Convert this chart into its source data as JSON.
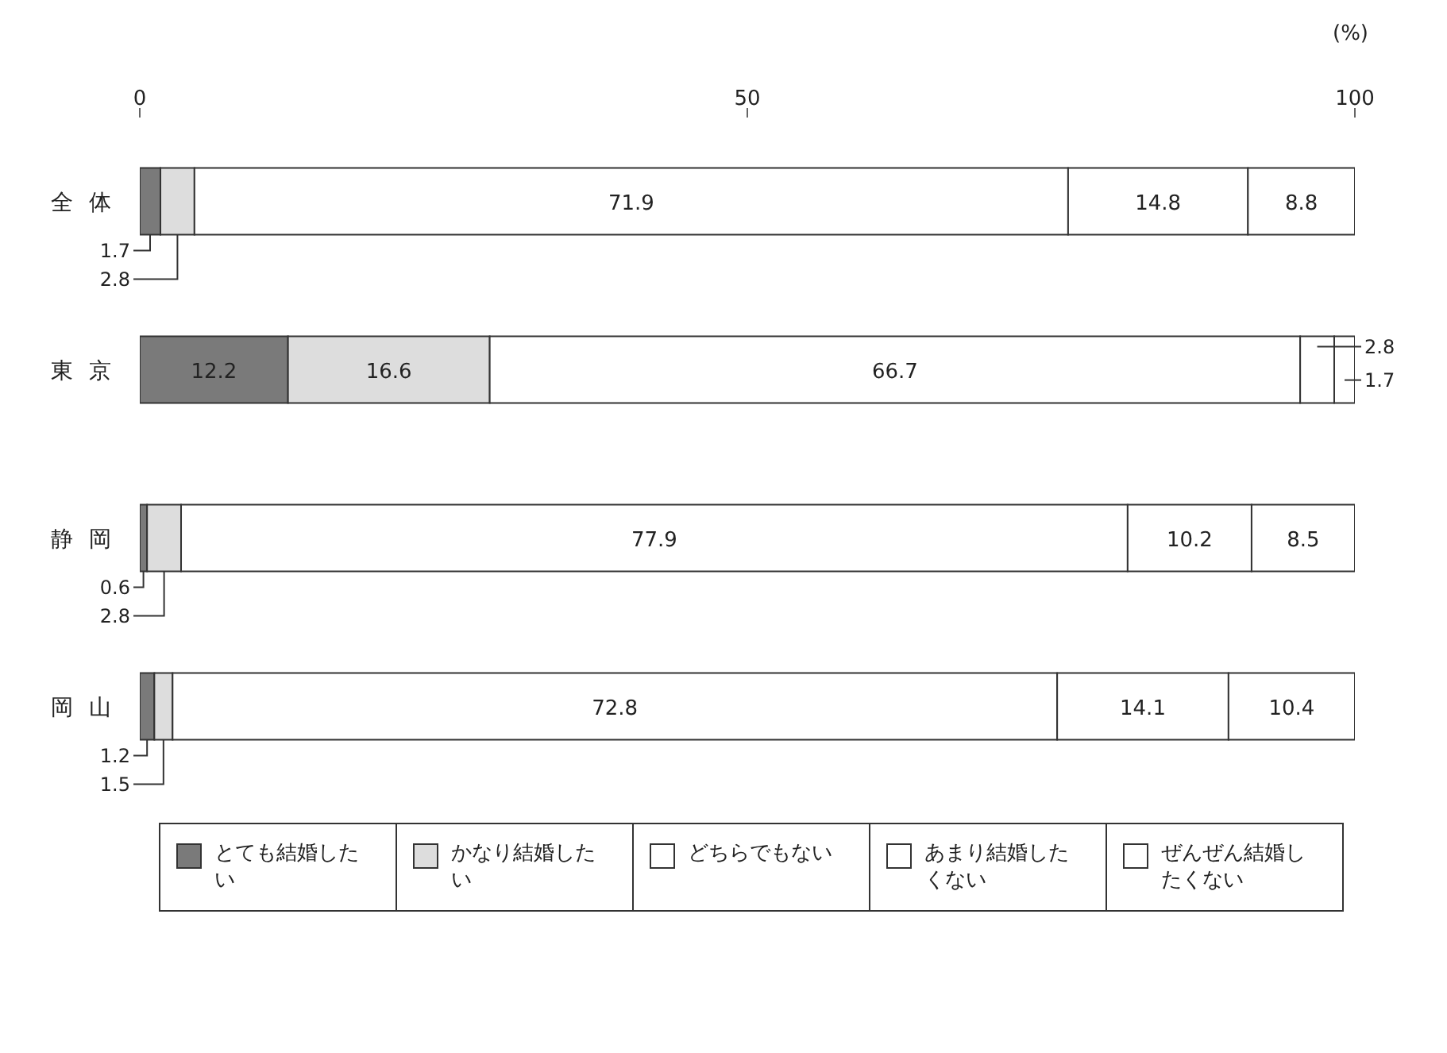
{
  "chart_data": {
    "type": "bar",
    "orientation": "horizontal",
    "stacked": true,
    "xlabel": "(%)",
    "categories": [
      "全体",
      "東京",
      "静岡",
      "岡山"
    ],
    "series": [
      {
        "name": "とても結婚したい",
        "color": "#7a7a7a",
        "values": [
          1.7,
          12.2,
          0.6,
          1.2
        ]
      },
      {
        "name": "かなり結婚したい",
        "color": "#dddddd",
        "values": [
          2.8,
          16.6,
          2.8,
          1.5
        ]
      },
      {
        "name": "どちらでもない",
        "color": "#ffffff",
        "values": [
          71.9,
          66.7,
          77.9,
          72.8
        ]
      },
      {
        "name": "あまり結婚したくない",
        "color": "#ffffff",
        "values": [
          14.8,
          2.8,
          10.2,
          14.1
        ]
      },
      {
        "name": "ぜんぜん結婚したくない",
        "color": "#ffffff",
        "values": [
          8.8,
          1.7,
          8.5,
          10.4
        ]
      }
    ],
    "xlim": [
      0,
      100
    ],
    "xticks": [
      0,
      50,
      100
    ],
    "data_labels": true,
    "legend": "bottom",
    "grid": false
  }
}
